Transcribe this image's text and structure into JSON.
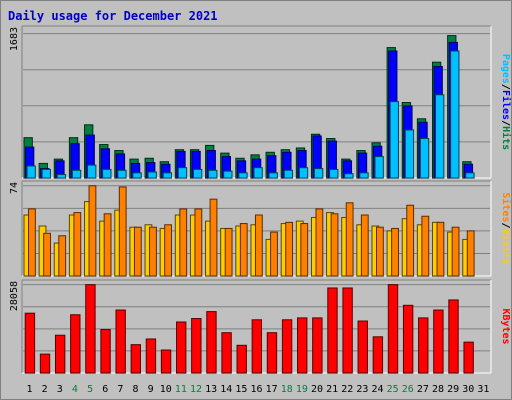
{
  "chart_data": {
    "type": "bar",
    "title": "Daily usage for December 2021",
    "categories": [
      "1",
      "2",
      "3",
      "4",
      "5",
      "6",
      "7",
      "8",
      "9",
      "10",
      "11",
      "12",
      "13",
      "14",
      "15",
      "16",
      "17",
      "18",
      "19",
      "20",
      "21",
      "22",
      "23",
      "24",
      "25",
      "26",
      "27",
      "28",
      "29",
      "30",
      "31"
    ],
    "weekend_days": [
      "4",
      "5",
      "11",
      "12",
      "18",
      "19",
      "25",
      "26"
    ],
    "panels": [
      {
        "id": "hits",
        "ymax": 1683,
        "ymax_label": "1683",
        "side_label": [
          {
            "text": "Pages",
            "color": "#00c0ff"
          },
          {
            "text": "/",
            "color": "#000000"
          },
          {
            "text": "Files",
            "color": "#0000ff"
          },
          {
            "text": "/",
            "color": "#000000"
          },
          {
            "text": "Hits",
            "color": "#008040"
          }
        ],
        "series": [
          {
            "name": "Hits",
            "color": "#008040",
            "values": [
              470,
              170,
              220,
              470,
              620,
              390,
              320,
              220,
              230,
              190,
              330,
              330,
              380,
              290,
              230,
              270,
              300,
              330,
              350,
              510,
              460,
              220,
              320,
              410,
              1520,
              880,
              690,
              1350,
              1660,
              190,
              0
            ]
          },
          {
            "name": "Files",
            "color": "#0000ff",
            "values": [
              360,
              110,
              200,
              400,
              500,
              340,
              280,
              170,
              180,
              160,
              310,
              310,
              320,
              250,
              200,
              220,
              260,
              300,
              320,
              490,
              430,
              200,
              290,
              370,
              1480,
              840,
              650,
              1300,
              1580,
              160,
              0
            ]
          },
          {
            "name": "Pages",
            "color": "#00c0ff",
            "values": [
              140,
              100,
              40,
              90,
              150,
              100,
              90,
              60,
              70,
              60,
              120,
              100,
              90,
              80,
              60,
              120,
              60,
              90,
              120,
              110,
              100,
              50,
              60,
              250,
              890,
              560,
              460,
              970,
              1480,
              60,
              0
            ]
          }
        ]
      },
      {
        "id": "visits",
        "ymax": 74,
        "ymax_label": "74",
        "side_label": [
          {
            "text": "Sites",
            "color": "#ff8000"
          },
          {
            "text": "/",
            "color": "#000000"
          },
          {
            "text": "Visits",
            "color": "#ffcc00"
          }
        ],
        "series": [
          {
            "name": "Visits",
            "color": "#ffcc00",
            "values": [
              50,
              41,
              27,
              50,
              61,
              45,
              54,
              40,
              42,
              39,
              50,
              50,
              45,
              39,
              41,
              42,
              30,
              43,
              45,
              48,
              52,
              48,
              42,
              41,
              37,
              47,
              42,
              44,
              36,
              30,
              0
            ]
          },
          {
            "name": "Sites",
            "color": "#ff8000",
            "values": [
              55,
              35,
              33,
              52,
              74,
              51,
              73,
              40,
              40,
              42,
              55,
              55,
              63,
              39,
              43,
              50,
              36,
              44,
              43,
              55,
              51,
              60,
              50,
              40,
              39,
              58,
              49,
              44,
              40,
              37,
              0
            ]
          }
        ]
      },
      {
        "id": "kbytes",
        "ymax": 28058,
        "ymax_label": "28058",
        "side_label": [
          {
            "text": "KBytes",
            "color": "#ff0000"
          }
        ],
        "series": [
          {
            "name": "KBytes",
            "color": "#ff0000",
            "values": [
              19000,
              6000,
              12000,
              18500,
              28058,
              13800,
              20000,
              9000,
              10800,
              7300,
              16200,
              17300,
              19500,
              12800,
              8800,
              16900,
              12800,
              16900,
              17500,
              17500,
              27000,
              27000,
              16500,
              11500,
              28058,
              21500,
              17500,
              20000,
              23200,
              9800,
              0
            ]
          }
        ]
      }
    ]
  }
}
